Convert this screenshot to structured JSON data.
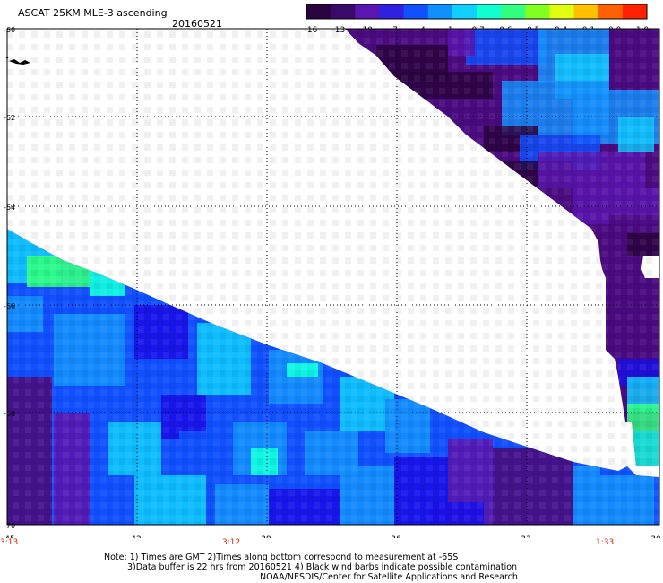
{
  "header": {
    "title": "ASCAT 25KM MLE-3 ascending",
    "date": "20160521"
  },
  "colorbar": {
    "ticks": [
      "-16",
      "-13",
      "-10",
      "-7",
      "-4",
      "-1",
      "-0.7",
      "-0.6",
      "-0.5",
      "-0.4",
      "-0.1",
      "0.0",
      "1.0"
    ],
    "colors": [
      "#2a0440",
      "#3a0a6a",
      "#5a16b0",
      "#3020e0",
      "#1050ff",
      "#1090ff",
      "#10d0ff",
      "#10ffd0",
      "#30ff80",
      "#80ff20",
      "#e0ff10",
      "#ffc000",
      "#ff6000",
      "#ff2000"
    ]
  },
  "map": {
    "lon_labels": [
      "-45",
      "-42",
      "-39",
      "-36",
      "-33",
      "-30"
    ],
    "lat_labels": [
      "-60",
      "-62",
      "-64",
      "-66",
      "-68",
      "-70"
    ],
    "time_labels": [
      "3:13",
      "3:12",
      "1:33"
    ],
    "colors": {
      "purple_dark": "#2a0440",
      "purple": "#4a0c80",
      "violet": "#5a16b0",
      "blue_dark": "#1a10e8",
      "blue": "#1050ff",
      "blue_mid": "#1490ff",
      "cyan": "#10c8ff",
      "aqua": "#10ffe0",
      "green": "#30ff80"
    }
  },
  "notes": {
    "line1": "Note: 1) Times are GMT 2)Times along bottom correspond to measurement at -65S",
    "line2": "3)Data buffer is 22 hrs from 20160521 4) Black wind barbs indicate possible contamination",
    "line3": "NOAA/NESDIS/Center for Satellite Applications and Research"
  }
}
